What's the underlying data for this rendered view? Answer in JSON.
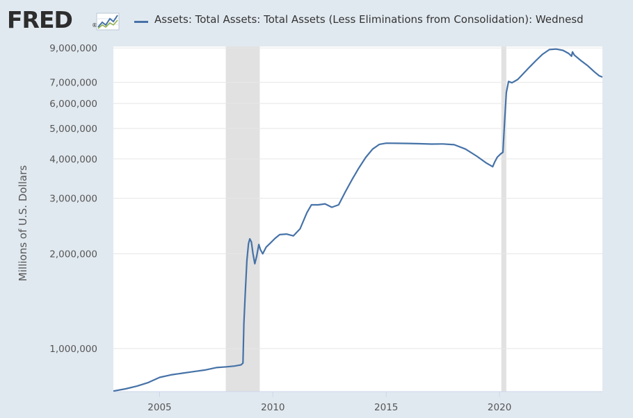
{
  "header": {
    "logo_text": "FRED",
    "logo_mark": "®",
    "logo_icon": "trend-line-icon",
    "legend_label": "Assets: Total Assets: Total Assets (Less Eliminations from Consolidation): Wednesd"
  },
  "colors": {
    "series": "#4572a7",
    "recession": "#e1e1e1",
    "background": "#e1e9f0",
    "plot": "#ffffff"
  },
  "chart_data": {
    "type": "line",
    "title": "",
    "xlabel": "",
    "ylabel": "Millions of U.S. Dollars",
    "yscale": "log",
    "ylim": [
      730000,
      9100000
    ],
    "xlim": [
      2002.96,
      2024.54
    ],
    "y_ticks": [
      {
        "value": 1000000,
        "label": "1,000,000"
      },
      {
        "value": 2000000,
        "label": "2,000,000"
      },
      {
        "value": 3000000,
        "label": "3,000,000"
      },
      {
        "value": 4000000,
        "label": "4,000,000"
      },
      {
        "value": 5000000,
        "label": "5,000,000"
      },
      {
        "value": 6000000,
        "label": "6,000,000"
      },
      {
        "value": 7000000,
        "label": "7,000,000"
      },
      {
        "value": 9000000,
        "label": "9,000,000"
      }
    ],
    "x_ticks": [
      {
        "value": 2005,
        "label": "2005"
      },
      {
        "value": 2010,
        "label": "2010"
      },
      {
        "value": 2015,
        "label": "2015"
      },
      {
        "value": 2020,
        "label": "2020"
      }
    ],
    "recessions": [
      [
        2007.92,
        2009.42
      ],
      [
        2020.08,
        2020.3
      ]
    ],
    "grid": true,
    "legend": "top",
    "series": [
      {
        "name": "Assets: Total Assets: Total Assets (Less Eliminations from Consolidation): Wednesd",
        "points": [
          [
            2002.96,
            733000
          ],
          [
            2003.5,
            745000
          ],
          [
            2004.0,
            760000
          ],
          [
            2004.5,
            780000
          ],
          [
            2005.0,
            810000
          ],
          [
            2005.5,
            825000
          ],
          [
            2006.0,
            835000
          ],
          [
            2006.5,
            845000
          ],
          [
            2007.0,
            855000
          ],
          [
            2007.5,
            870000
          ],
          [
            2007.95,
            875000
          ],
          [
            2008.3,
            880000
          ],
          [
            2008.6,
            888000
          ],
          [
            2008.68,
            900000
          ],
          [
            2008.72,
            1200000
          ],
          [
            2008.78,
            1500000
          ],
          [
            2008.85,
            1900000
          ],
          [
            2008.92,
            2150000
          ],
          [
            2008.98,
            2230000
          ],
          [
            2009.05,
            2180000
          ],
          [
            2009.12,
            2000000
          ],
          [
            2009.2,
            1860000
          ],
          [
            2009.28,
            1960000
          ],
          [
            2009.38,
            2140000
          ],
          [
            2009.45,
            2060000
          ],
          [
            2009.55,
            2000000
          ],
          [
            2009.7,
            2100000
          ],
          [
            2009.85,
            2150000
          ],
          [
            2010.1,
            2240000
          ],
          [
            2010.3,
            2300000
          ],
          [
            2010.6,
            2310000
          ],
          [
            2010.9,
            2280000
          ],
          [
            2011.2,
            2400000
          ],
          [
            2011.5,
            2700000
          ],
          [
            2011.7,
            2860000
          ],
          [
            2012.0,
            2860000
          ],
          [
            2012.3,
            2880000
          ],
          [
            2012.6,
            2810000
          ],
          [
            2012.9,
            2860000
          ],
          [
            2013.2,
            3150000
          ],
          [
            2013.5,
            3450000
          ],
          [
            2013.8,
            3750000
          ],
          [
            2014.1,
            4050000
          ],
          [
            2014.4,
            4300000
          ],
          [
            2014.7,
            4450000
          ],
          [
            2015.0,
            4490000
          ],
          [
            2015.5,
            4485000
          ],
          [
            2016.0,
            4480000
          ],
          [
            2016.5,
            4470000
          ],
          [
            2017.0,
            4460000
          ],
          [
            2017.5,
            4465000
          ],
          [
            2018.0,
            4440000
          ],
          [
            2018.5,
            4300000
          ],
          [
            2019.0,
            4080000
          ],
          [
            2019.4,
            3890000
          ],
          [
            2019.7,
            3780000
          ],
          [
            2019.78,
            3900000
          ],
          [
            2019.9,
            4050000
          ],
          [
            2020.05,
            4150000
          ],
          [
            2020.15,
            4200000
          ],
          [
            2020.22,
            5200000
          ],
          [
            2020.3,
            6500000
          ],
          [
            2020.4,
            7050000
          ],
          [
            2020.55,
            6980000
          ],
          [
            2020.8,
            7150000
          ],
          [
            2021.0,
            7400000
          ],
          [
            2021.3,
            7800000
          ],
          [
            2021.6,
            8200000
          ],
          [
            2021.9,
            8600000
          ],
          [
            2022.2,
            8900000
          ],
          [
            2022.5,
            8930000
          ],
          [
            2022.8,
            8850000
          ],
          [
            2023.05,
            8650000
          ],
          [
            2023.18,
            8480000
          ],
          [
            2023.22,
            8750000
          ],
          [
            2023.3,
            8550000
          ],
          [
            2023.6,
            8200000
          ],
          [
            2023.9,
            7900000
          ],
          [
            2024.2,
            7550000
          ],
          [
            2024.4,
            7350000
          ],
          [
            2024.54,
            7280000
          ]
        ]
      }
    ]
  }
}
